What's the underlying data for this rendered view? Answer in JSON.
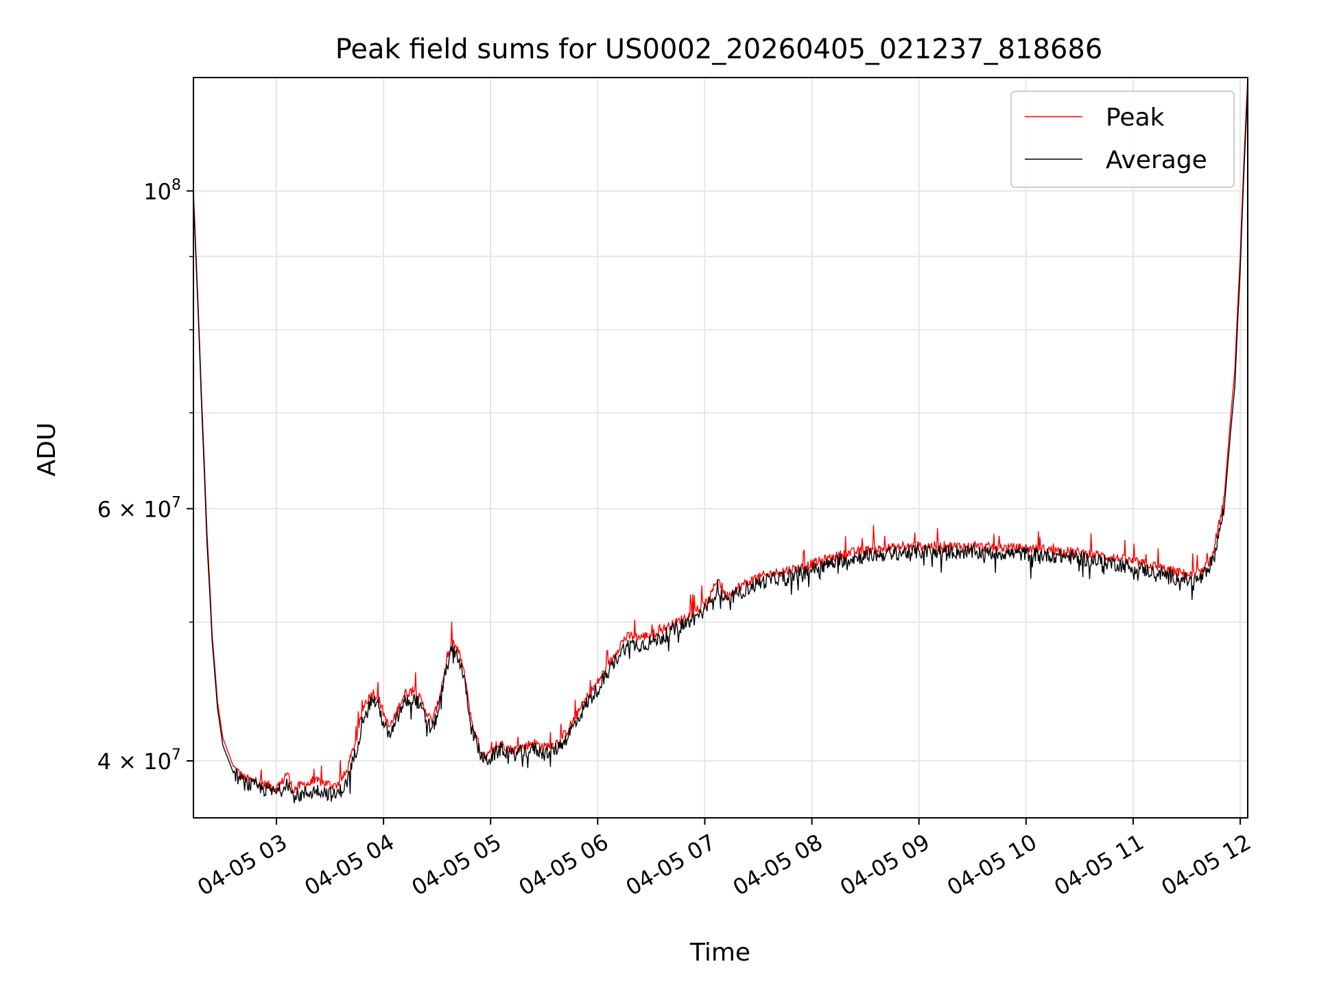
{
  "chart_data": {
    "type": "line",
    "title": "Peak field sums for US0002_20260405_021237_818686",
    "xlabel": "Time",
    "ylabel": "ADU",
    "yscale": "log",
    "ylim": [
      36500000,
      120000000
    ],
    "xlim": [
      2.225,
      12.07
    ],
    "grid": true,
    "legend_position": "top-right",
    "x_tick_values": [
      3,
      4,
      5,
      6,
      7,
      8,
      9,
      10,
      11,
      12
    ],
    "x_tick_labels": [
      "04-05 03",
      "04-05 04",
      "04-05 05",
      "04-05 06",
      "04-05 07",
      "04-05 08",
      "04-05 09",
      "04-05 10",
      "04-05 11",
      "04-05 12"
    ],
    "y_major_ticks": [
      {
        "value": 40000000,
        "base": "4 × 10",
        "exp": "7"
      },
      {
        "value": 60000000,
        "base": "6 × 10",
        "exp": "7"
      },
      {
        "value": 100000000,
        "base": "10",
        "exp": "8"
      }
    ],
    "y_minor_ticks": [
      50000000,
      70000000,
      80000000,
      90000000
    ],
    "series": [
      {
        "name": "Peak",
        "color": "#ff0000",
        "x": [
          2.225,
          2.25,
          2.3,
          2.35,
          2.4,
          2.45,
          2.5,
          2.6,
          2.7,
          2.8,
          2.9,
          3.0,
          3.05,
          3.1,
          3.15,
          3.25,
          3.4,
          3.55,
          3.65,
          3.75,
          3.82,
          3.9,
          3.95,
          4.0,
          4.05,
          4.1,
          4.15,
          4.2,
          4.3,
          4.38,
          4.45,
          4.5,
          4.55,
          4.6,
          4.65,
          4.72,
          4.78,
          4.82,
          4.9,
          4.95,
          5.0,
          5.05,
          5.1,
          5.15,
          5.2,
          5.3,
          5.4,
          5.5,
          5.6,
          5.7,
          5.8,
          5.9,
          6.0,
          6.1,
          6.2,
          6.25,
          6.3,
          6.4,
          6.5,
          6.6,
          6.7,
          6.8,
          6.9,
          7.0,
          7.05,
          7.12,
          7.2,
          7.3,
          7.4,
          7.5,
          7.6,
          7.7,
          7.8,
          7.9,
          8.0,
          8.1,
          8.2,
          8.3,
          8.5,
          8.7,
          9.0,
          9.3,
          9.6,
          10.0,
          10.3,
          10.6,
          10.9,
          11.2,
          11.4,
          11.55,
          11.65,
          11.75,
          11.85,
          11.95,
          12.0,
          12.03,
          12.07
        ],
        "y": [
          100000000,
          90000000,
          72000000,
          58000000,
          49000000,
          44000000,
          41500000,
          39600000,
          38900000,
          38700000,
          38500000,
          38300000,
          38600000,
          39300000,
          38200000,
          38500000,
          38700000,
          38400000,
          39200000,
          41500000,
          43800000,
          44700000,
          44300000,
          43200000,
          42200000,
          42800000,
          43800000,
          44600000,
          44800000,
          43600000,
          42600000,
          43600000,
          45400000,
          47200000,
          48400000,
          47300000,
          44900000,
          42600000,
          40800000,
          40300000,
          40400000,
          40800000,
          41100000,
          40900000,
          40700000,
          40900000,
          41200000,
          40900000,
          41100000,
          41800000,
          43000000,
          44300000,
          45400000,
          46600000,
          48100000,
          48700000,
          48900000,
          48800000,
          49000000,
          49400000,
          49800000,
          50300000,
          50800000,
          51400000,
          52000000,
          53700000,
          52100000,
          52800000,
          53300000,
          53700000,
          54000000,
          54200000,
          54400000,
          54600000,
          54900000,
          55200000,
          55500000,
          55800000,
          56100000,
          56300000,
          56500000,
          56500000,
          56400000,
          56300000,
          56100000,
          55800000,
          55300000,
          54700000,
          54200000,
          53900000,
          54200000,
          55800000,
          61000000,
          75000000,
          90000000,
          103000000,
          120000000
        ]
      },
      {
        "name": "Average",
        "color": "#000000",
        "x": [
          2.225,
          2.25,
          2.3,
          2.35,
          2.4,
          2.45,
          2.5,
          2.6,
          2.7,
          2.8,
          2.9,
          3.0,
          3.05,
          3.1,
          3.15,
          3.25,
          3.4,
          3.55,
          3.65,
          3.75,
          3.82,
          3.9,
          3.95,
          4.0,
          4.05,
          4.1,
          4.15,
          4.2,
          4.3,
          4.38,
          4.45,
          4.5,
          4.55,
          4.6,
          4.65,
          4.72,
          4.78,
          4.82,
          4.9,
          4.95,
          5.0,
          5.05,
          5.1,
          5.15,
          5.2,
          5.3,
          5.4,
          5.5,
          5.6,
          5.7,
          5.8,
          5.9,
          6.0,
          6.1,
          6.2,
          6.25,
          6.3,
          6.4,
          6.5,
          6.6,
          6.7,
          6.8,
          6.9,
          7.0,
          7.05,
          7.12,
          7.2,
          7.3,
          7.4,
          7.5,
          7.6,
          7.7,
          7.8,
          7.9,
          8.0,
          8.1,
          8.2,
          8.3,
          8.5,
          8.7,
          9.0,
          9.3,
          9.6,
          10.0,
          10.3,
          10.6,
          10.9,
          11.2,
          11.4,
          11.55,
          11.65,
          11.75,
          11.85,
          11.95,
          12.0,
          12.03,
          12.07
        ],
        "y": [
          99000000,
          89000000,
          71000000,
          57000000,
          48500000,
          43500000,
          41000000,
          39200000,
          38600000,
          38400000,
          38200000,
          38000000,
          38200000,
          38800000,
          37800000,
          37900000,
          38200000,
          37800000,
          38500000,
          40800000,
          43200000,
          44200000,
          43700000,
          42500000,
          41600000,
          42200000,
          43200000,
          44000000,
          44200000,
          43000000,
          42000000,
          43000000,
          44900000,
          46800000,
          48000000,
          46800000,
          44400000,
          42200000,
          40500000,
          40000000,
          40200000,
          40500000,
          40800000,
          40600000,
          40400000,
          40600000,
          40800000,
          40500000,
          40700000,
          41400000,
          42600000,
          43900000,
          44900000,
          46100000,
          47500000,
          48000000,
          48200000,
          48200000,
          48400000,
          48800000,
          49300000,
          49800000,
          50300000,
          50900000,
          51500000,
          52900000,
          51600000,
          52300000,
          52800000,
          53200000,
          53500000,
          53700000,
          53900000,
          54100000,
          54400000,
          54700000,
          55000000,
          55300000,
          55600000,
          55800000,
          56000000,
          56000000,
          55900000,
          55800000,
          55600000,
          55300000,
          54800000,
          54200000,
          53700000,
          53400000,
          53700000,
          55300000,
          60000000,
          73000000,
          88000000,
          101000000,
          118000000
        ]
      }
    ]
  }
}
